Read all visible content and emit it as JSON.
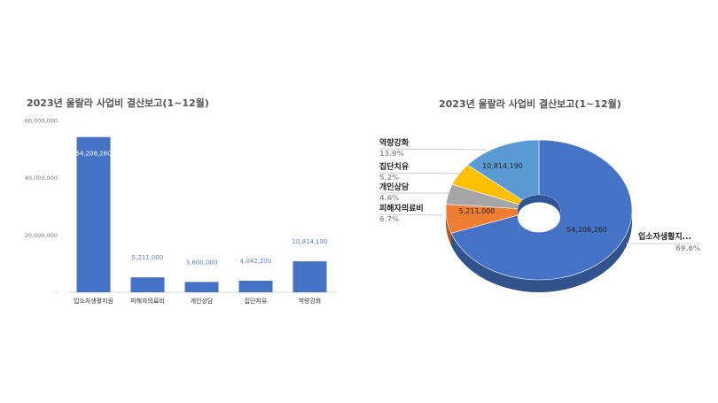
{
  "chart_data": [
    {
      "type": "bar",
      "title": "2023년 울랄라 사업비 결산보고(1~12월)",
      "categories": [
        "입소자생활지원",
        "피해자의료비",
        "개인상담",
        "집단치유",
        "역량강화"
      ],
      "values": [
        54208260,
        5211000,
        3600000,
        4042200,
        10814190
      ],
      "value_labels": [
        "54,208,260",
        "5,211,000",
        "3,600,000",
        "4,042,200",
        "10,814,190"
      ],
      "ylim": [
        0,
        60000000
      ],
      "yticks": [
        0,
        20000000,
        40000000,
        60000000
      ],
      "ytick_labels": [
        "-",
        "20,000,000",
        "40,000,000",
        "60,000,000"
      ],
      "color": "#4472c4",
      "grid": false
    },
    {
      "type": "pie",
      "style": "3d-donut",
      "title": "2023년 울랄라 사업비 결산보고(1~12월)",
      "slices": [
        {
          "label": "입소자생활지...",
          "value": 54208260,
          "value_label": "54,208,260",
          "percent": "69.6%",
          "color": "#4472c4"
        },
        {
          "label": "피해자의료비",
          "value": 5211000,
          "value_label": "5,211,000",
          "percent": "6.7%",
          "color": "#ed7d31"
        },
        {
          "label": "개인상담",
          "value": 3600000,
          "value_label": "",
          "percent": "4.6%",
          "color": "#a5a5a5"
        },
        {
          "label": "집단치유",
          "value": 4042200,
          "value_label": "",
          "percent": "5.2%",
          "color": "#ffc000"
        },
        {
          "label": "역량강화",
          "value": 10814190,
          "value_label": "10,814,190",
          "percent": "13.9%",
          "color": "#5b9bd5"
        }
      ]
    }
  ]
}
